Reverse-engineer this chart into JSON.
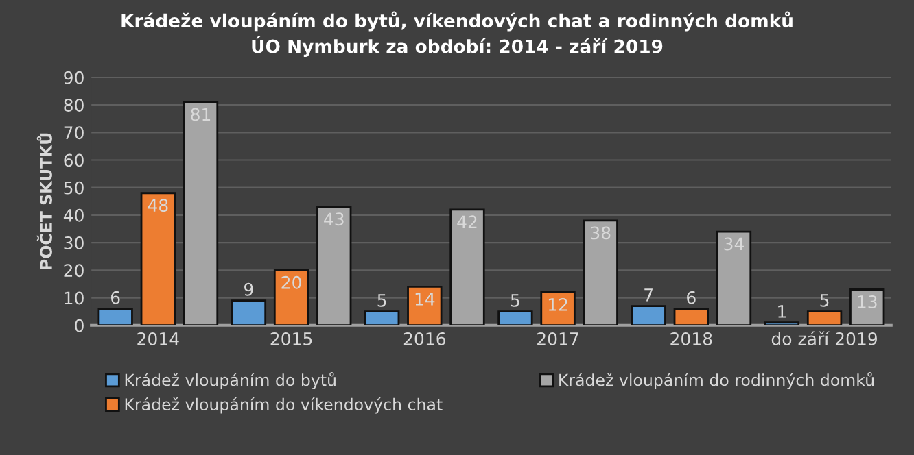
{
  "chart_data": {
    "type": "bar",
    "title": "Krádeže vloupáním do bytů, víkendových chat a rodinných domků\nÚO Nymburk za období: 2014 - září 2019",
    "ylabel": "POČET SKUTKŮ",
    "categories": [
      "2014",
      "2015",
      "2016",
      "2017",
      "2018",
      "do září 2019"
    ],
    "series": [
      {
        "name": "Krádež vloupáním do bytů",
        "color": "#5b9bd5",
        "values": [
          6,
          9,
          5,
          5,
          7,
          1
        ]
      },
      {
        "name": "Krádež vloupáním do víkendových chat",
        "color": "#ed7d31",
        "values": [
          48,
          20,
          14,
          12,
          6,
          5
        ]
      },
      {
        "name": "Krádež vloupáním do rodinných domků",
        "color": "#a5a5a5",
        "values": [
          81,
          43,
          42,
          38,
          34,
          13
        ]
      }
    ],
    "ylim": [
      0,
      90
    ],
    "yticks": [
      0,
      10,
      20,
      30,
      40,
      50,
      60,
      70,
      80,
      90
    ],
    "grid": "y",
    "legend": "bottom",
    "data_labels": true
  }
}
